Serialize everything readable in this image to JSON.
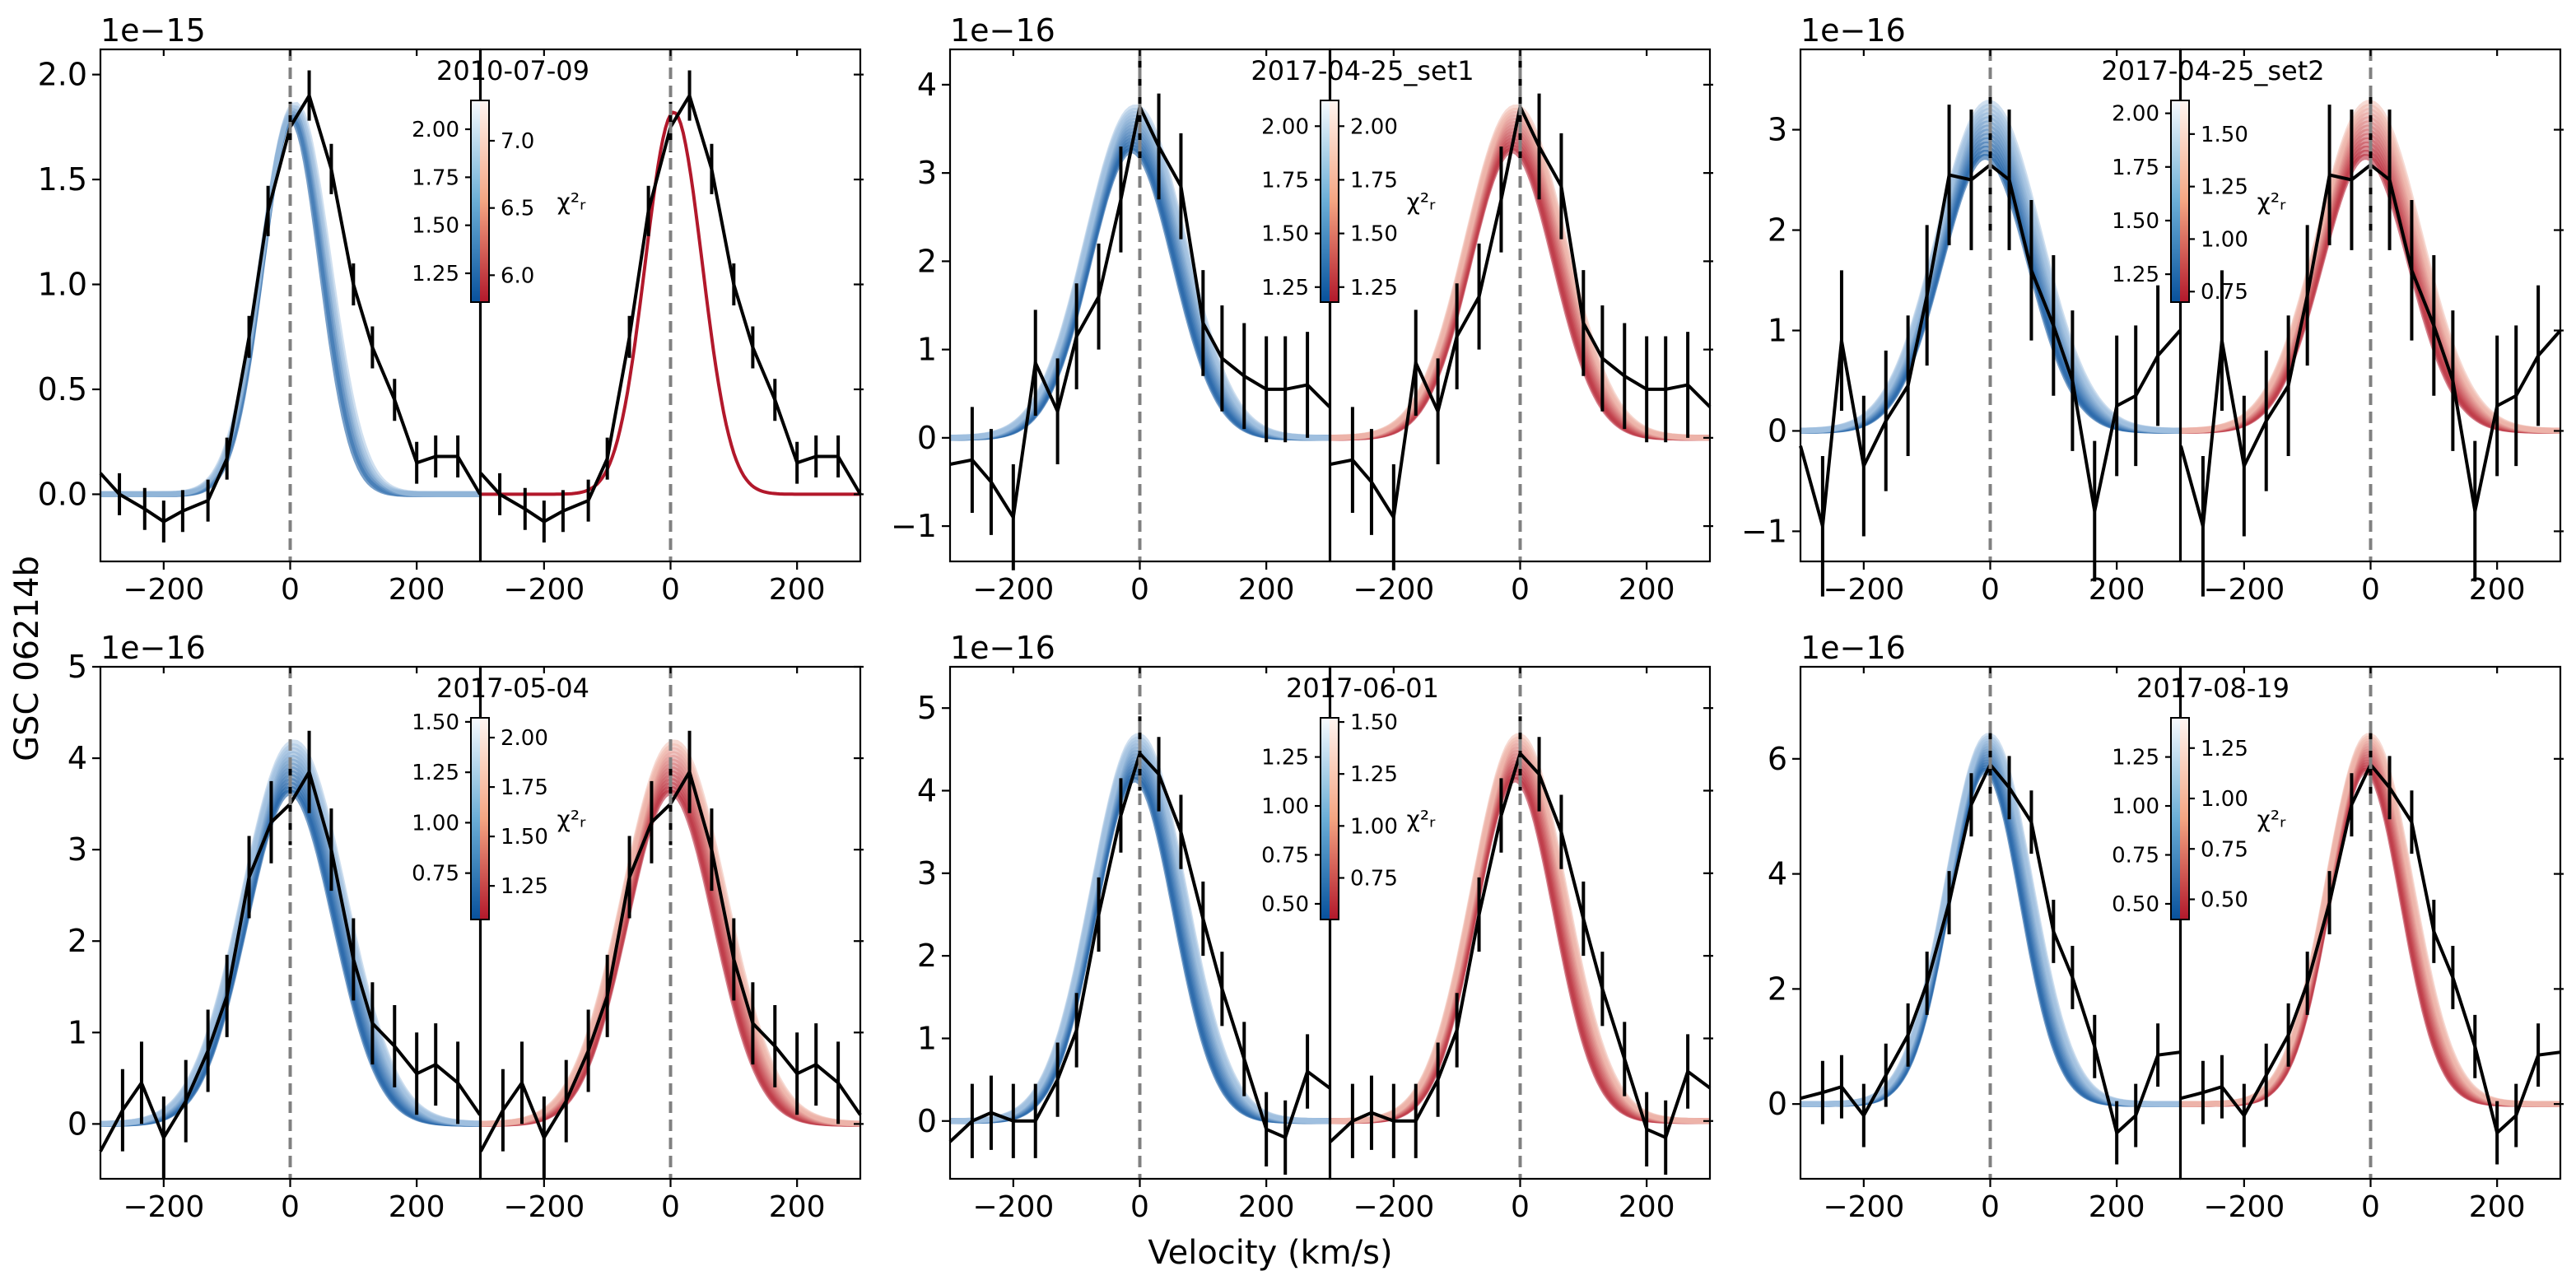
{
  "figure": {
    "ylabel": "GSC 06214b",
    "xlabel": "Velocity (km/s)",
    "cb_label": "χ²ᵣ",
    "colors": {
      "blue_dark": "#08519c",
      "blue_light": "#c6dbef",
      "red_dark": "#b2182b",
      "red_light": "#fcdbc9",
      "data": "#000000",
      "guide": "#808080"
    }
  },
  "chart_data": [
    {
      "type": "line",
      "title": "2010-07-09",
      "offset": "1e−15",
      "ylim": [
        -0.32,
        2.12
      ],
      "yticks": [
        0.0,
        0.5,
        1.0,
        1.5,
        2.0
      ],
      "ytick_labels": [
        "0.0",
        "0.5",
        "1.0",
        "1.5",
        "2.0"
      ],
      "xlim": [
        -300,
        300
      ],
      "xticks": [
        -200,
        0,
        200
      ],
      "xtick_labels": [
        "−200",
        "0",
        "200"
      ],
      "model": {
        "amp": 1.82,
        "center": 5,
        "sigma": 50,
        "fan": 6,
        "spread": 0.02,
        "right_style": "single"
      },
      "data": {
        "x": [
          -300,
          -270,
          -230,
          -200,
          -170,
          -130,
          -100,
          -65,
          -35,
          0,
          30,
          65,
          100,
          130,
          165,
          200,
          230,
          265,
          300
        ],
        "y": [
          0.1,
          0.0,
          -0.07,
          -0.13,
          -0.08,
          -0.03,
          0.17,
          0.75,
          1.35,
          1.75,
          1.9,
          1.55,
          1.0,
          0.7,
          0.45,
          0.15,
          0.18,
          0.18,
          0.0
        ],
        "err": [
          0.1,
          0.1,
          0.1,
          0.1,
          0.1,
          0.1,
          0.1,
          0.1,
          0.12,
          0.12,
          0.12,
          0.12,
          0.1,
          0.1,
          0.1,
          0.1,
          0.1,
          0.1,
          0.1
        ]
      },
      "colorbar_blue": {
        "ticks": [
          1.25,
          1.5,
          1.75,
          2.0
        ],
        "labels": [
          "1.25",
          "1.50",
          "1.75",
          "2.00"
        ],
        "range": [
          1.1,
          2.15
        ]
      },
      "colorbar_red": {
        "ticks": [
          6.0,
          6.5,
          7.0
        ],
        "labels": [
          "6.0",
          "6.5",
          "7.0"
        ],
        "range": [
          5.8,
          7.3
        ]
      }
    },
    {
      "type": "line",
      "title": "2017-04-25_set1",
      "offset": "1e−16",
      "ylim": [
        -1.4,
        4.4
      ],
      "yticks": [
        -1,
        0,
        1,
        2,
        3,
        4
      ],
      "ytick_labels": [
        "−1",
        "0",
        "1",
        "2",
        "3",
        "4"
      ],
      "xlim": [
        -300,
        300
      ],
      "xticks": [
        -200,
        0,
        200
      ],
      "xtick_labels": [
        "−200",
        "0",
        "200"
      ],
      "model": {
        "amp": 3.5,
        "center": -10,
        "sigma": 72,
        "fan": 14,
        "spread": 0.07,
        "right_style": "fan"
      },
      "data": {
        "x": [
          -300,
          -265,
          -235,
          -200,
          -165,
          -130,
          -100,
          -65,
          -30,
          0,
          30,
          65,
          100,
          130,
          165,
          200,
          230,
          265,
          300
        ],
        "y": [
          -0.3,
          -0.25,
          -0.5,
          -0.9,
          0.85,
          0.3,
          1.15,
          1.6,
          2.7,
          3.75,
          3.3,
          2.85,
          1.3,
          0.9,
          0.7,
          0.55,
          0.55,
          0.6,
          0.35
        ],
        "err": [
          0.6,
          0.6,
          0.6,
          0.6,
          0.6,
          0.6,
          0.6,
          0.6,
          0.6,
          0.6,
          0.6,
          0.6,
          0.6,
          0.6,
          0.6,
          0.6,
          0.6,
          0.6,
          0.6
        ]
      },
      "colorbar_blue": {
        "ticks": [
          1.25,
          1.5,
          1.75,
          2.0
        ],
        "labels": [
          "1.25",
          "1.50",
          "1.75",
          "2.00"
        ],
        "range": [
          1.18,
          2.12
        ]
      },
      "colorbar_red": {
        "ticks": [
          1.25,
          1.5,
          1.75,
          2.0
        ],
        "labels": [
          "1.25",
          "1.50",
          "1.75",
          "2.00"
        ],
        "range": [
          1.18,
          2.12
        ]
      }
    },
    {
      "type": "line",
      "title": "2017-04-25_set2",
      "offset": "1e−16",
      "ylim": [
        -1.3,
        3.8
      ],
      "yticks": [
        -1,
        0,
        1,
        2,
        3
      ],
      "ytick_labels": [
        "−1",
        "0",
        "1",
        "2",
        "3"
      ],
      "xlim": [
        -300,
        300
      ],
      "xticks": [
        -200,
        0,
        200
      ],
      "xtick_labels": [
        "−200",
        "0",
        "200"
      ],
      "model": {
        "amp": 3.0,
        "center": -5,
        "sigma": 75,
        "fan": 14,
        "spread": 0.09,
        "right_style": "fan"
      },
      "data": {
        "x": [
          -300,
          -265,
          -235,
          -200,
          -165,
          -130,
          -100,
          -65,
          -30,
          0,
          30,
          65,
          100,
          130,
          165,
          200,
          230,
          265,
          300
        ],
        "y": [
          -0.15,
          -0.95,
          0.9,
          -0.35,
          0.1,
          0.45,
          1.35,
          2.55,
          2.5,
          2.65,
          2.5,
          1.6,
          1.05,
          0.5,
          -0.8,
          0.25,
          0.35,
          0.75,
          1.0
        ],
        "err": [
          0.7,
          0.7,
          0.7,
          0.7,
          0.7,
          0.7,
          0.7,
          0.7,
          0.7,
          0.7,
          0.7,
          0.7,
          0.7,
          0.7,
          0.7,
          0.7,
          0.7,
          0.7,
          0.7
        ]
      },
      "colorbar_blue": {
        "ticks": [
          1.25,
          1.5,
          1.75,
          2.0
        ],
        "labels": [
          "1.25",
          "1.50",
          "1.75",
          "2.00"
        ],
        "range": [
          1.12,
          2.06
        ]
      },
      "colorbar_red": {
        "ticks": [
          0.75,
          1.0,
          1.25,
          1.5
        ],
        "labels": [
          "0.75",
          "1.00",
          "1.25",
          "1.50"
        ],
        "range": [
          0.7,
          1.66
        ]
      }
    },
    {
      "type": "line",
      "title": "2017-05-04",
      "offset": "1e−16",
      "ylim": [
        -0.6,
        5.0
      ],
      "yticks": [
        0,
        1,
        2,
        3,
        4,
        5
      ],
      "ytick_labels": [
        "0",
        "1",
        "2",
        "3",
        "4",
        "5"
      ],
      "xlim": [
        -300,
        300
      ],
      "xticks": [
        -200,
        0,
        200
      ],
      "xtick_labels": [
        "−200",
        "0",
        "200"
      ],
      "model": {
        "amp": 3.9,
        "center": 3,
        "sigma": 75,
        "fan": 14,
        "spread": 0.07,
        "right_style": "fan"
      },
      "data": {
        "x": [
          -300,
          -265,
          -235,
          -200,
          -165,
          -130,
          -100,
          -65,
          -30,
          0,
          30,
          65,
          100,
          130,
          165,
          200,
          230,
          265,
          300
        ],
        "y": [
          -0.3,
          0.15,
          0.45,
          -0.15,
          0.25,
          0.8,
          1.4,
          2.7,
          3.3,
          3.5,
          3.85,
          3.0,
          1.8,
          1.1,
          0.85,
          0.55,
          0.65,
          0.45,
          0.1
        ],
        "err": [
          0.45,
          0.45,
          0.45,
          0.45,
          0.45,
          0.45,
          0.45,
          0.45,
          0.45,
          0.45,
          0.45,
          0.45,
          0.45,
          0.45,
          0.45,
          0.45,
          0.45,
          0.45,
          0.45
        ]
      },
      "colorbar_blue": {
        "ticks": [
          0.75,
          1.0,
          1.25,
          1.5
        ],
        "labels": [
          "0.75",
          "1.00",
          "1.25",
          "1.50"
        ],
        "range": [
          0.52,
          1.52
        ]
      },
      "colorbar_red": {
        "ticks": [
          1.25,
          1.5,
          1.75,
          2.0
        ],
        "labels": [
          "1.25",
          "1.50",
          "1.75",
          "2.00"
        ],
        "range": [
          1.08,
          2.1
        ]
      }
    },
    {
      "type": "line",
      "title": "2017-06-01",
      "offset": "1e−16",
      "ylim": [
        -0.7,
        5.5
      ],
      "yticks": [
        0,
        1,
        2,
        3,
        4,
        5
      ],
      "ytick_labels": [
        "0",
        "1",
        "2",
        "3",
        "4",
        "5"
      ],
      "xlim": [
        -300,
        300
      ],
      "xticks": [
        -200,
        0,
        200
      ],
      "xtick_labels": [
        "−200",
        "0",
        "200"
      ],
      "model": {
        "amp": 4.4,
        "center": -5,
        "sigma": 68,
        "fan": 14,
        "spread": 0.06,
        "right_style": "fan"
      },
      "data": {
        "x": [
          -300,
          -265,
          -235,
          -200,
          -165,
          -130,
          -100,
          -65,
          -30,
          0,
          30,
          65,
          100,
          130,
          165,
          200,
          230,
          265,
          300
        ],
        "y": [
          -0.25,
          0.0,
          0.1,
          0.0,
          0.0,
          0.5,
          1.1,
          2.5,
          3.7,
          4.45,
          4.2,
          3.5,
          2.45,
          1.6,
          0.75,
          -0.1,
          -0.2,
          0.6,
          0.4
        ],
        "err": [
          0.45,
          0.45,
          0.45,
          0.45,
          0.45,
          0.45,
          0.45,
          0.45,
          0.45,
          0.45,
          0.45,
          0.45,
          0.45,
          0.45,
          0.45,
          0.45,
          0.45,
          0.45,
          0.45
        ]
      },
      "colorbar_blue": {
        "ticks": [
          0.5,
          0.75,
          1.0,
          1.25
        ],
        "labels": [
          "0.50",
          "0.75",
          "1.00",
          "1.25"
        ],
        "range": [
          0.42,
          1.45
        ]
      },
      "colorbar_red": {
        "ticks": [
          0.75,
          1.0,
          1.25,
          1.5
        ],
        "labels": [
          "0.75",
          "1.00",
          "1.25",
          "1.50"
        ],
        "range": [
          0.55,
          1.52
        ]
      }
    },
    {
      "type": "line",
      "title": "2017-08-19",
      "offset": "1e−16",
      "ylim": [
        -1.3,
        7.6
      ],
      "yticks": [
        0,
        2,
        4,
        6
      ],
      "ytick_labels": [
        "0",
        "2",
        "4",
        "6"
      ],
      "xlim": [
        -300,
        300
      ],
      "xticks": [
        -200,
        0,
        200
      ],
      "xtick_labels": [
        "−200",
        "0",
        "200"
      ],
      "model": {
        "amp": 6.1,
        "center": -5,
        "sigma": 62,
        "fan": 14,
        "spread": 0.05,
        "right_style": "fan"
      },
      "data": {
        "x": [
          -300,
          -265,
          -235,
          -200,
          -165,
          -130,
          -100,
          -65,
          -30,
          0,
          30,
          65,
          100,
          130,
          165,
          200,
          230,
          265,
          300
        ],
        "y": [
          0.1,
          0.2,
          0.3,
          -0.2,
          0.5,
          1.2,
          2.1,
          3.5,
          5.2,
          5.9,
          5.5,
          4.9,
          3.0,
          2.2,
          1.0,
          -0.5,
          -0.2,
          0.85,
          0.9
        ],
        "err": [
          0.55,
          0.55,
          0.55,
          0.55,
          0.55,
          0.55,
          0.55,
          0.55,
          0.55,
          0.55,
          0.55,
          0.55,
          0.55,
          0.55,
          0.55,
          0.55,
          0.55,
          0.55,
          0.55
        ]
      },
      "colorbar_blue": {
        "ticks": [
          0.5,
          0.75,
          1.0,
          1.25
        ],
        "labels": [
          "0.50",
          "0.75",
          "1.00",
          "1.25"
        ],
        "range": [
          0.42,
          1.45
        ]
      },
      "colorbar_red": {
        "ticks": [
          0.5,
          0.75,
          1.0,
          1.25
        ],
        "labels": [
          "0.50",
          "0.75",
          "1.00",
          "1.25"
        ],
        "range": [
          0.4,
          1.4
        ]
      }
    }
  ]
}
